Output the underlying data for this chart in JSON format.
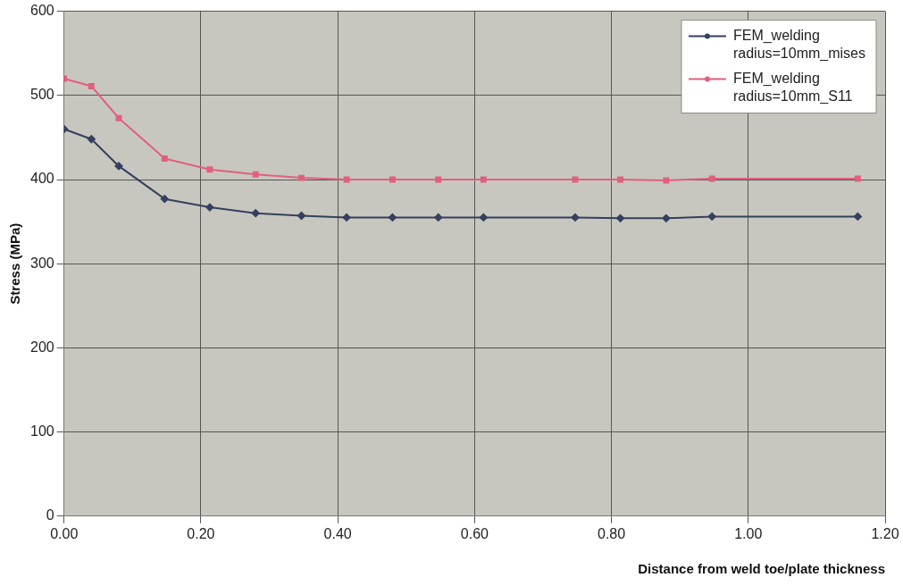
{
  "chart_data": {
    "type": "line",
    "xlabel": "Distance from weld toe/plate thickness",
    "ylabel": "Stress (MPa)",
    "x": [
      0,
      0.04,
      0.08,
      0.147,
      0.213,
      0.28,
      0.347,
      0.413,
      0.48,
      0.547,
      0.613,
      0.747,
      0.813,
      0.88,
      0.947,
      1.16
    ],
    "series": [
      {
        "name": "FEM_welding radius=10mm_mises",
        "color": "#34405e",
        "marker": "diamond",
        "values": [
          460,
          448,
          416,
          377,
          367,
          360,
          357,
          355,
          355,
          355,
          355,
          355,
          354,
          354,
          356,
          356
        ]
      },
      {
        "name": "FEM_welding radius=10mm_S11",
        "color": "#e0607e",
        "marker": "square",
        "values": [
          520,
          511,
          473,
          425,
          412,
          406,
          402,
          400,
          400,
          400,
          400,
          400,
          400,
          399,
          401,
          401
        ]
      }
    ],
    "xlim": [
      0,
      1.2
    ],
    "xticks": [
      {
        "value": 0,
        "label": "0.00"
      },
      {
        "value": 0.2,
        "label": "0.20"
      },
      {
        "value": 0.4,
        "label": "0.40"
      },
      {
        "value": 0.6,
        "label": "0.60"
      },
      {
        "value": 0.8,
        "label": "0.80"
      },
      {
        "value": 1,
        "label": "1.00"
      },
      {
        "value": 1.2,
        "label": "1.20"
      }
    ],
    "ylim": [
      0,
      600
    ],
    "yticks": [
      0,
      100,
      200,
      300,
      400,
      500,
      600
    ],
    "grid": true,
    "legend": "top right",
    "line_style": "solid"
  }
}
